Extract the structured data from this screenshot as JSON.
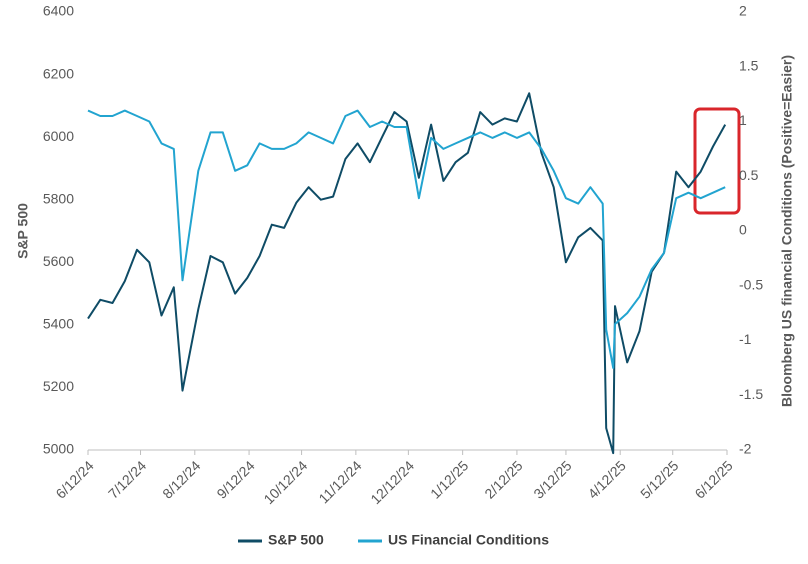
{
  "chart_data": {
    "type": "line",
    "y_axis_label": "S&P 500",
    "y2_axis_label": "Bloomberg US financial Conditions (Positive=Easier)",
    "x": [
      "6/12/24",
      "6/19/24",
      "6/26/24",
      "7/3/24",
      "7/10/24",
      "7/17/24",
      "7/24/24",
      "7/31/24",
      "8/5/24",
      "8/14/24",
      "8/21/24",
      "8/28/24",
      "9/4/24",
      "9/11/24",
      "9/18/24",
      "9/25/24",
      "10/2/24",
      "10/9/24",
      "10/16/24",
      "10/23/24",
      "10/30/24",
      "11/6/24",
      "11/13/24",
      "11/20/24",
      "11/27/24",
      "12/4/24",
      "12/11/24",
      "12/18/24",
      "12/25/24",
      "1/1/25",
      "1/8/25",
      "1/15/25",
      "1/22/25",
      "1/29/25",
      "2/5/25",
      "2/12/25",
      "2/19/25",
      "2/26/25",
      "3/5/25",
      "3/12/25",
      "3/19/25",
      "3/26/25",
      "4/2/25",
      "4/4/25",
      "4/8/25",
      "4/9/25",
      "4/16/25",
      "4/23/25",
      "4/30/25",
      "5/7/25",
      "5/14/25",
      "5/21/25",
      "5/28/25",
      "6/4/25",
      "6/11/25"
    ],
    "xlim": [
      "6/12/24",
      "6/12/25"
    ],
    "xticks": [
      "6/12/24",
      "7/12/24",
      "8/12/24",
      "9/12/24",
      "10/12/24",
      "11/12/24",
      "12/12/24",
      "1/12/25",
      "2/12/25",
      "3/12/25",
      "4/12/25",
      "5/12/25",
      "6/12/25"
    ],
    "ylim": [
      5000,
      6400
    ],
    "yticks": [
      5000,
      5200,
      5400,
      5600,
      5800,
      6000,
      6200,
      6400
    ],
    "y2lim": [
      -2,
      2
    ],
    "y2ticks": [
      -2,
      -1.5,
      -1,
      -0.5,
      0,
      0.5,
      1,
      1.5,
      2
    ],
    "legend": "bottom",
    "series": [
      {
        "name": "S&P 500",
        "color": "#0f4c66",
        "values": [
          5420,
          5480,
          5470,
          5540,
          5640,
          5600,
          5430,
          5520,
          5190,
          5450,
          5620,
          5600,
          5500,
          5550,
          5620,
          5720,
          5710,
          5790,
          5840,
          5800,
          5810,
          5930,
          5980,
          5920,
          6000,
          6080,
          6050,
          5870,
          6040,
          5860,
          5920,
          5950,
          6080,
          6040,
          6060,
          6050,
          6140,
          5950,
          5840,
          5600,
          5680,
          5710,
          5670,
          5070,
          4990,
          5460,
          5280,
          5380,
          5570,
          5630,
          5890,
          5840,
          5890,
          5970,
          6040
        ]
      },
      {
        "name": "US Financial Conditions",
        "color": "#22a4d0",
        "axis": "y2",
        "values": [
          1.1,
          1.05,
          1.05,
          1.1,
          1.05,
          1.0,
          0.8,
          0.75,
          -0.45,
          0.55,
          0.9,
          0.9,
          0.55,
          0.6,
          0.8,
          0.75,
          0.75,
          0.8,
          0.9,
          0.85,
          0.8,
          1.05,
          1.1,
          0.95,
          1.0,
          0.95,
          0.95,
          0.3,
          0.85,
          0.75,
          0.8,
          0.85,
          0.9,
          0.85,
          0.9,
          0.85,
          0.9,
          0.75,
          0.55,
          0.3,
          0.25,
          0.4,
          0.25,
          -0.9,
          -1.25,
          -0.85,
          -0.75,
          -0.6,
          -0.35,
          -0.2,
          0.3,
          0.35,
          0.3,
          0.35,
          0.4
        ]
      }
    ]
  }
}
